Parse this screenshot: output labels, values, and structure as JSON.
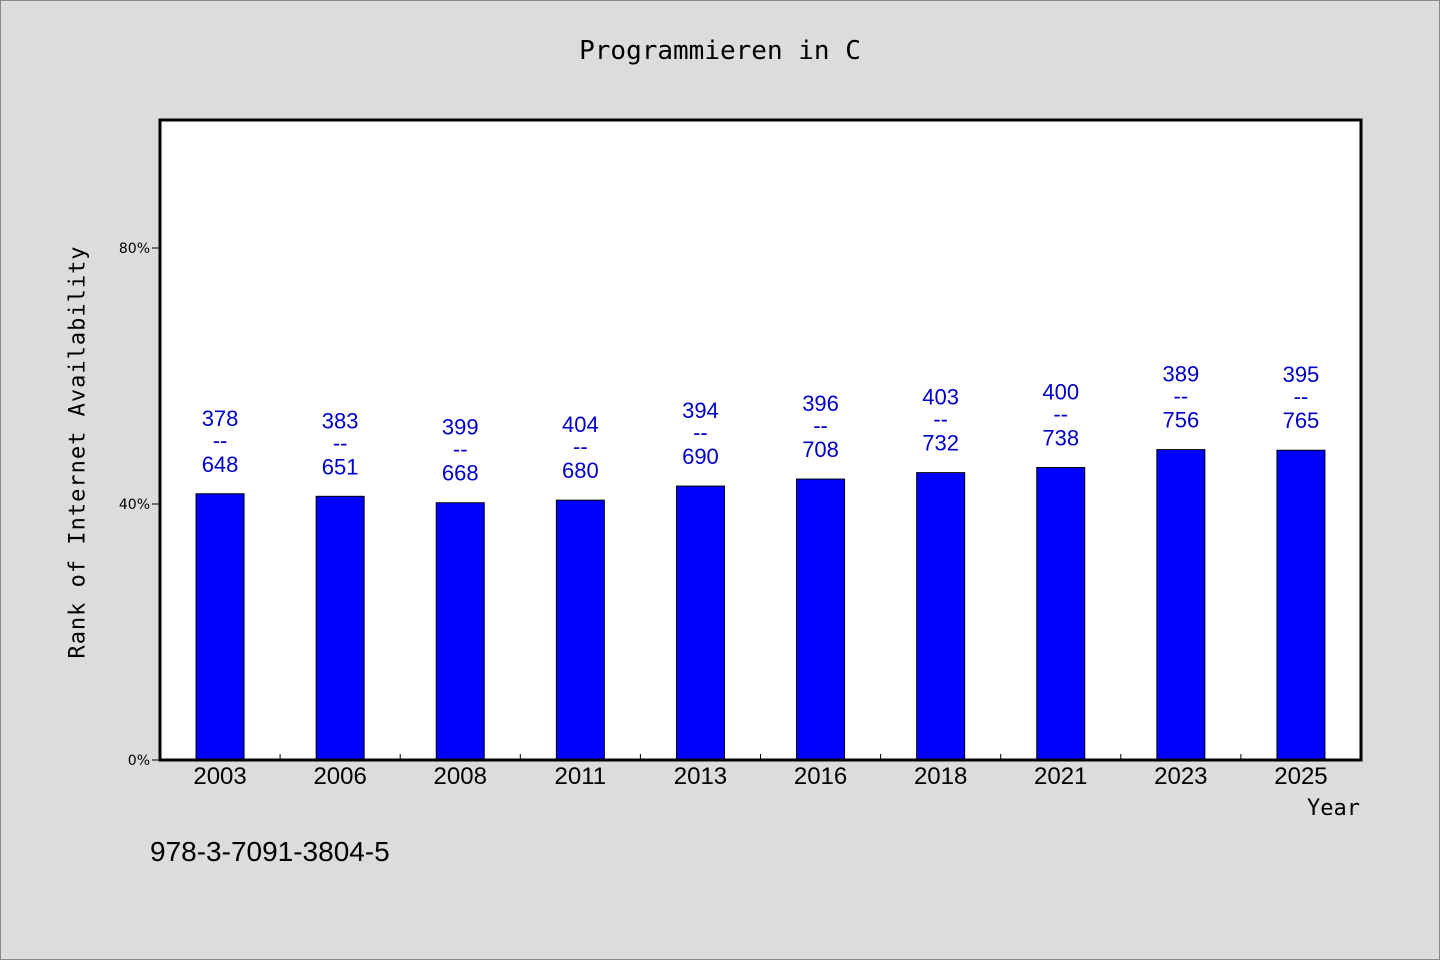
{
  "chart_data": {
    "type": "bar",
    "title": "Programmieren in C",
    "xlabel": "Year",
    "ylabel": "Rank of Internet Availability",
    "categories": [
      "2003",
      "2006",
      "2008",
      "2011",
      "2013",
      "2016",
      "2018",
      "2021",
      "2023",
      "2025"
    ],
    "values": [
      41.6,
      41.2,
      40.2,
      40.6,
      42.8,
      43.9,
      44.9,
      45.7,
      48.5,
      48.4
    ],
    "labels_top": [
      "378",
      "383",
      "399",
      "404",
      "394",
      "396",
      "403",
      "400",
      "389",
      "395"
    ],
    "labels_bottom": [
      "648",
      "651",
      "668",
      "680",
      "690",
      "708",
      "732",
      "738",
      "756",
      "765"
    ],
    "label_separator": "--",
    "yticks": [
      0,
      40,
      80
    ],
    "ytick_labels": [
      "0%",
      "40%",
      "80%"
    ],
    "ylim": [
      0,
      100
    ],
    "grid": false,
    "bar_color": "#0000ff",
    "label_color": "#0000cc",
    "background_color": "#dcdcdc"
  },
  "footer": {
    "isbn": "978-3-7091-3804-5"
  }
}
